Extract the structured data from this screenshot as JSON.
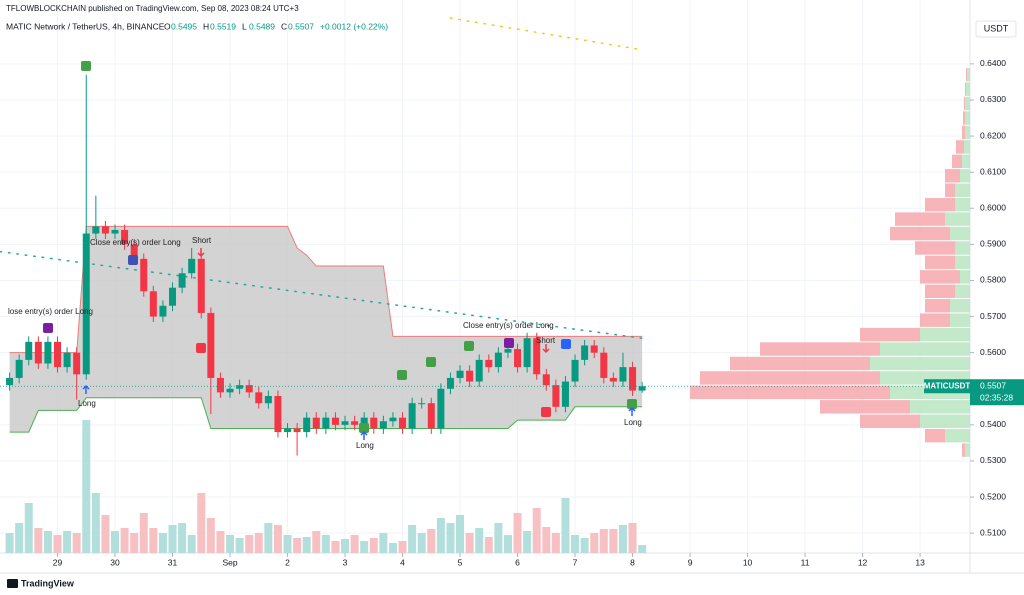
{
  "header": {
    "publisher": "TFLOWBLOCKCHAIN published on TradingView.com, Sep 08, 2023 08:24 UTC+3",
    "symbol": "MATIC Network / TetherUS, 4h, BINANCE",
    "ohlc_labels": [
      "O",
      "H",
      "L",
      "C"
    ],
    "change_label": "+0.0012 (+0.22%)",
    "branding": "TradingView"
  },
  "chart_data": {
    "type": "candlestick",
    "currency": "USDT",
    "symbol_tag": "MATICUSDT",
    "countdown": "02:35:28",
    "x": [
      0,
      1,
      2,
      3,
      4,
      5,
      6,
      7,
      8,
      9,
      10,
      11,
      12,
      13,
      14,
      15,
      16,
      17,
      18,
      19,
      20,
      21,
      22,
      23,
      24,
      25,
      26,
      27,
      28,
      29,
      30,
      31,
      32,
      33,
      34,
      35,
      36,
      37,
      38,
      39,
      40,
      41,
      42,
      43,
      44,
      45,
      46,
      47,
      48,
      49,
      50,
      51,
      52,
      53,
      54,
      55,
      56,
      57,
      58,
      59,
      60,
      61,
      62,
      63,
      64,
      65,
      66
    ],
    "open": [
      0.551,
      0.553,
      0.558,
      0.563,
      0.557,
      0.563,
      0.556,
      0.56,
      0.554,
      0.593,
      0.595,
      0.593,
      0.594,
      0.59,
      0.586,
      0.577,
      0.57,
      0.573,
      0.578,
      0.582,
      0.586,
      0.571,
      0.553,
      0.549,
      0.55,
      0.551,
      0.549,
      0.546,
      0.548,
      0.538,
      0.539,
      0.538,
      0.542,
      0.539,
      0.542,
      0.54,
      0.541,
      0.54,
      0.542,
      0.539,
      0.541,
      0.542,
      0.539,
      0.546,
      0.546,
      0.539,
      0.55,
      0.553,
      0.555,
      0.552,
      0.558,
      0.556,
      0.56,
      0.561,
      0.556,
      0.564,
      0.554,
      0.551,
      0.545,
      0.552,
      0.558,
      0.562,
      0.56,
      0.553,
      0.552,
      0.556,
      0.5495
    ],
    "high": [
      0.5545,
      0.5595,
      0.5645,
      0.5645,
      0.5645,
      0.5645,
      0.5615,
      0.5615,
      0.637,
      0.6035,
      0.5965,
      0.5955,
      0.5955,
      0.5915,
      0.5875,
      0.5785,
      0.5745,
      0.5795,
      0.5835,
      0.589,
      0.5875,
      0.5725,
      0.5545,
      0.5515,
      0.5525,
      0.5525,
      0.5505,
      0.5495,
      0.5495,
      0.5405,
      0.5405,
      0.5435,
      0.5435,
      0.5435,
      0.5435,
      0.5425,
      0.5425,
      0.5435,
      0.5435,
      0.5425,
      0.5435,
      0.5435,
      0.5475,
      0.5475,
      0.5475,
      0.5515,
      0.5545,
      0.5565,
      0.5565,
      0.5595,
      0.5595,
      0.5615,
      0.5625,
      0.5625,
      0.5655,
      0.5655,
      0.5555,
      0.5525,
      0.5535,
      0.5595,
      0.5635,
      0.5635,
      0.5615,
      0.5545,
      0.56,
      0.5575,
      0.5519
    ],
    "low": [
      0.5495,
      0.5515,
      0.5565,
      0.5555,
      0.5555,
      0.5545,
      0.5545,
      0.547,
      0.5525,
      0.5915,
      0.5915,
      0.5915,
      0.5885,
      0.5845,
      0.5755,
      0.5685,
      0.5685,
      0.5715,
      0.5765,
      0.5805,
      0.5695,
      0.543,
      0.5475,
      0.5475,
      0.5485,
      0.5475,
      0.5445,
      0.5445,
      0.5365,
      0.5365,
      0.5315,
      0.5365,
      0.5375,
      0.5375,
      0.5385,
      0.5385,
      0.5385,
      0.5385,
      0.5375,
      0.5375,
      0.5395,
      0.5375,
      0.5375,
      0.5445,
      0.5375,
      0.5375,
      0.5485,
      0.5515,
      0.5505,
      0.5505,
      0.5545,
      0.5545,
      0.5585,
      0.5545,
      0.5545,
      0.5525,
      0.5495,
      0.5435,
      0.5435,
      0.5505,
      0.5565,
      0.5585,
      0.5515,
      0.5505,
      0.5505,
      0.548,
      0.5489
    ],
    "close": [
      0.553,
      0.558,
      0.563,
      0.557,
      0.563,
      0.556,
      0.56,
      0.554,
      0.593,
      0.595,
      0.593,
      0.594,
      0.59,
      0.586,
      0.577,
      0.57,
      0.573,
      0.578,
      0.582,
      0.586,
      0.571,
      0.553,
      0.549,
      0.55,
      0.551,
      0.549,
      0.546,
      0.548,
      0.538,
      0.539,
      0.538,
      0.542,
      0.539,
      0.542,
      0.54,
      0.541,
      0.54,
      0.542,
      0.539,
      0.541,
      0.542,
      0.539,
      0.546,
      0.546,
      0.539,
      0.55,
      0.553,
      0.555,
      0.552,
      0.558,
      0.556,
      0.56,
      0.561,
      0.556,
      0.564,
      0.554,
      0.551,
      0.545,
      0.552,
      0.558,
      0.562,
      0.56,
      0.553,
      0.552,
      0.556,
      0.5495,
      0.5507
    ],
    "volume": [
      20,
      30,
      50,
      25,
      22,
      18,
      22,
      20,
      133,
      60,
      38,
      22,
      25,
      20,
      40,
      25,
      20,
      28,
      30,
      18,
      60,
      35,
      22,
      18,
      15,
      18,
      20,
      30,
      28,
      18,
      15,
      16,
      22,
      18,
      12,
      14,
      18,
      12,
      15,
      20,
      10,
      12,
      28,
      20,
      24,
      35,
      30,
      38,
      20,
      25,
      16,
      30,
      18,
      40,
      22,
      45,
      26,
      20,
      55,
      18,
      15,
      20,
      24,
      24,
      28,
      30,
      8
    ],
    "vol_lim": [
      0,
      150
    ],
    "channel_upper": [
      0.56,
      0.56,
      0.56,
      0.56,
      0.56,
      0.56,
      0.56,
      0.56,
      0.595,
      0.595,
      0.595,
      0.595,
      0.595,
      0.595,
      0.595,
      0.595,
      0.595,
      0.595,
      0.595,
      0.595,
      0.595,
      0.595,
      0.595,
      0.595,
      0.595,
      0.595,
      0.595,
      0.595,
      0.595,
      0.595,
      0.589,
      0.587,
      0.584,
      0.584,
      0.584,
      0.584,
      0.584,
      0.584,
      0.584,
      0.584,
      0.5645,
      0.5645,
      0.5645,
      0.5645,
      0.5645,
      0.5645,
      0.5645,
      0.5645,
      0.5645,
      0.5645,
      0.5645,
      0.5645,
      0.5645,
      0.5645,
      0.5645,
      0.5645,
      0.5645,
      0.5645,
      0.5645,
      0.5645,
      0.5645,
      0.5645,
      0.5645,
      0.5645,
      0.5645,
      0.5645,
      0.5645
    ],
    "channel_lower": [
      0.538,
      0.538,
      0.538,
      0.544,
      0.544,
      0.544,
      0.544,
      0.544,
      0.5475,
      0.5475,
      0.5475,
      0.5475,
      0.5475,
      0.5475,
      0.5475,
      0.5475,
      0.5475,
      0.5475,
      0.5475,
      0.5475,
      0.5475,
      0.539,
      0.539,
      0.539,
      0.539,
      0.539,
      0.539,
      0.539,
      0.539,
      0.539,
      0.539,
      0.539,
      0.539,
      0.539,
      0.539,
      0.539,
      0.539,
      0.539,
      0.539,
      0.539,
      0.539,
      0.539,
      0.539,
      0.539,
      0.539,
      0.539,
      0.539,
      0.539,
      0.539,
      0.539,
      0.539,
      0.539,
      0.539,
      0.5413,
      0.5413,
      0.5413,
      0.5413,
      0.5413,
      0.5413,
      0.545,
      0.545,
      0.545,
      0.545,
      0.545,
      0.545,
      0.545,
      0.545
    ],
    "ma_line": {
      "x": [
        -1,
        66
      ],
      "values": [
        0.588,
        0.564
      ]
    },
    "ma2_line": {
      "x": [
        46,
        66
      ],
      "values": [
        0.6527,
        0.6439
      ]
    },
    "profile": {
      "levels": [
        0.533,
        0.537,
        0.541,
        0.545,
        0.549,
        0.553,
        0.557,
        0.561,
        0.565,
        0.569,
        0.573,
        0.577,
        0.581,
        0.585,
        0.589,
        0.593,
        0.597,
        0.601,
        0.605,
        0.609,
        0.613,
        0.617,
        0.621,
        0.625,
        0.629,
        0.633,
        0.637
      ],
      "down": [
        3,
        20,
        60,
        90,
        200,
        180,
        140,
        120,
        60,
        30,
        25,
        30,
        40,
        30,
        40,
        60,
        50,
        30,
        10,
        15,
        10,
        8,
        3,
        2,
        1,
        1,
        1
      ],
      "up": [
        5,
        25,
        50,
        60,
        80,
        90,
        100,
        90,
        50,
        20,
        20,
        15,
        10,
        15,
        15,
        20,
        25,
        15,
        15,
        10,
        8,
        6,
        5,
        5,
        5,
        4,
        3
      ]
    },
    "annotations": [
      "Close entry(s) order Long",
      "Short",
      "lose entry(s) order Long",
      "Long",
      "Long",
      "Close entry(s) order Long",
      "Short",
      "Long"
    ],
    "xlim": [
      -1,
      100
    ],
    "xticks": [
      {
        "value": 5,
        "label": "29"
      },
      {
        "value": 11,
        "label": "30"
      },
      {
        "value": 17,
        "label": "31"
      },
      {
        "value": 23,
        "label": "Sep"
      },
      {
        "value": 29,
        "label": "2"
      },
      {
        "value": 35,
        "label": "3"
      },
      {
        "value": 41,
        "label": "4"
      },
      {
        "value": 47,
        "label": "5"
      },
      {
        "value": 53,
        "label": "6"
      },
      {
        "value": 59,
        "label": "7"
      },
      {
        "value": 65,
        "label": "8"
      },
      {
        "value": 71,
        "label": "9"
      },
      {
        "value": 77,
        "label": "10"
      },
      {
        "value": 83,
        "label": "11"
      },
      {
        "value": 89,
        "label": "12"
      },
      {
        "value": 95,
        "label": "13"
      }
    ],
    "ylim": [
      0.5045,
      0.6577
    ],
    "yticks": [
      {
        "value": 0.51,
        "label": "0.5100"
      },
      {
        "value": 0.52,
        "label": "0.5200"
      },
      {
        "value": 0.53,
        "label": "0.5300"
      },
      {
        "value": 0.54,
        "label": "0.5400"
      },
      {
        "value": 0.55,
        "label": "0.5500"
      },
      {
        "value": 0.56,
        "label": "0.5600"
      },
      {
        "value": 0.57,
        "label": "0.5700"
      },
      {
        "value": 0.58,
        "label": "0.5800"
      },
      {
        "value": 0.59,
        "label": "0.5900"
      },
      {
        "value": 0.6,
        "label": "0.6000"
      },
      {
        "value": 0.61,
        "label": "0.6100"
      },
      {
        "value": 0.62,
        "label": "0.6200"
      },
      {
        "value": 0.63,
        "label": "0.6300"
      },
      {
        "value": 0.64,
        "label": "0.6400"
      }
    ],
    "grid": true,
    "colors": {
      "up": "#089981",
      "down": "#f23645",
      "vol_up": "#b2dfdb",
      "vol_down": "#f7c1c4",
      "channel": "#c8c8c8",
      "ma": "#26a69a",
      "ma2": "#f5c518",
      "profile_up": "#b9e4c1",
      "profile_down": "#f5a3a9"
    }
  }
}
